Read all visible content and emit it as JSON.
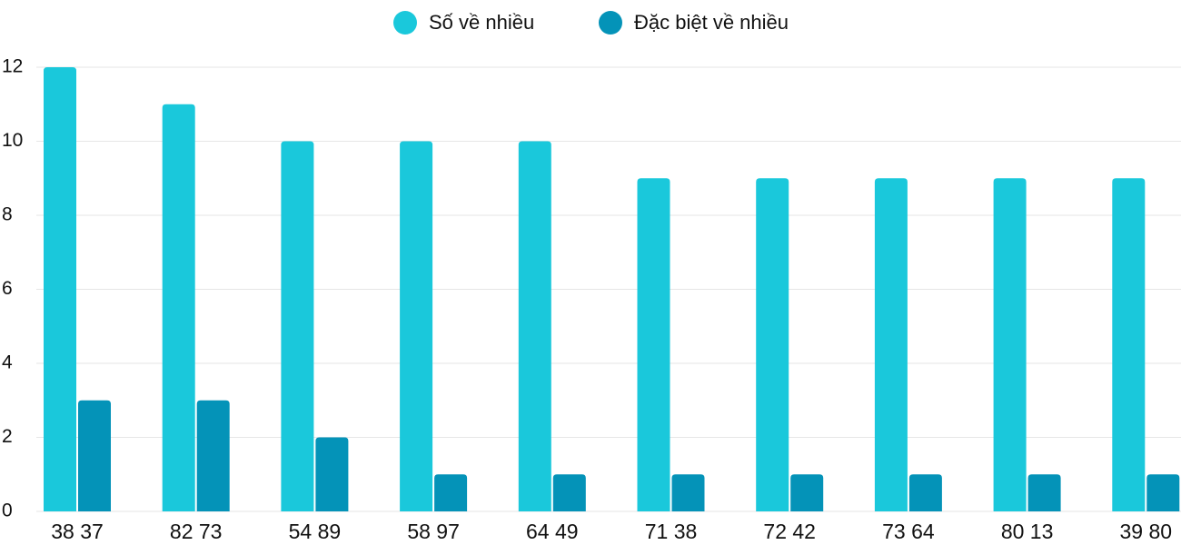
{
  "chart_data": {
    "type": "bar",
    "categories": [
      "38 37",
      "82 73",
      "54 89",
      "58 97",
      "64 49",
      "71 38",
      "72 42",
      "73 64",
      "80 13",
      "39 80"
    ],
    "series": [
      {
        "name": "Số về nhiều",
        "color": "#1ac8db",
        "values": [
          12,
          11,
          10,
          10,
          10,
          9,
          9,
          9,
          9,
          9
        ]
      },
      {
        "name": "Đặc biệt về nhiều",
        "color": "#0493b8",
        "values": [
          3,
          3,
          2,
          1,
          1,
          1,
          1,
          1,
          1,
          1
        ]
      }
    ],
    "ylim": [
      0,
      12
    ],
    "yticks": [
      0,
      2,
      4,
      6,
      8,
      10,
      12
    ],
    "grid": true,
    "legend": "top"
  }
}
